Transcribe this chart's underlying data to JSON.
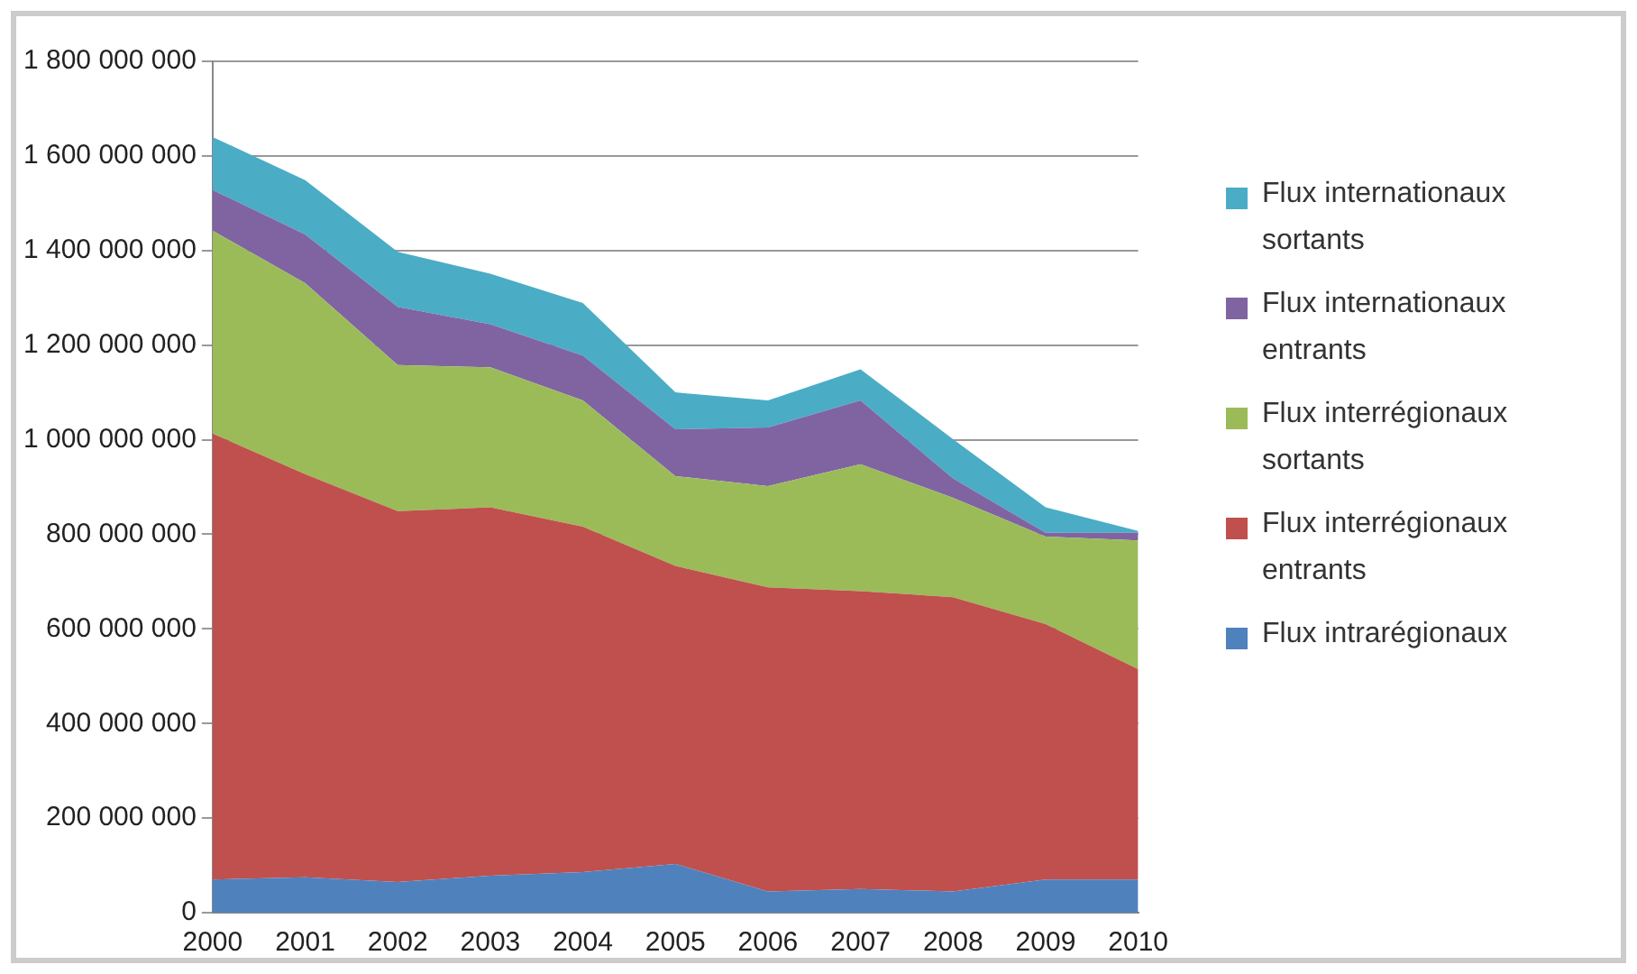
{
  "chart_data": {
    "type": "area",
    "stacked": true,
    "categories": [
      "2000",
      "2001",
      "2002",
      "2003",
      "2004",
      "2005",
      "2006",
      "2007",
      "2008",
      "2009",
      "2010"
    ],
    "ylim": [
      0,
      1800000000
    ],
    "yticks": [
      0,
      200000000,
      400000000,
      600000000,
      800000000,
      1000000000,
      1200000000,
      1400000000,
      1600000000,
      1800000000
    ],
    "grid": "y",
    "legend": "right",
    "series": [
      {
        "name": "Flux intrarégionaux",
        "color": "#4f81bd",
        "values": [
          70000000,
          75000000,
          65000000,
          78000000,
          86000000,
          103000000,
          45000000,
          50000000,
          45000000,
          70000000,
          70000000
        ]
      },
      {
        "name": "Flux interrégionaux entrants",
        "color": "#c0504d",
        "values": [
          943000000,
          852000000,
          784000000,
          779000000,
          730000000,
          630000000,
          643000000,
          630000000,
          622000000,
          540000000,
          445000000
        ]
      },
      {
        "name": "Flux interrégionaux sortants",
        "color": "#9bbb59",
        "values": [
          429000000,
          404000000,
          309000000,
          296000000,
          267000000,
          190000000,
          214000000,
          268000000,
          210000000,
          185000000,
          272000000
        ]
      },
      {
        "name": "Flux internationaux entrants",
        "color": "#8064a2",
        "values": [
          86000000,
          103000000,
          123000000,
          91000000,
          95000000,
          99000000,
          124000000,
          135000000,
          41000000,
          8000000,
          16000000
        ]
      },
      {
        "name": "Flux internationaux sortants",
        "color": "#4bacc6",
        "values": [
          112000000,
          115000000,
          116000000,
          107000000,
          111000000,
          78000000,
          57000000,
          66000000,
          83000000,
          54000000,
          4000000
        ]
      }
    ]
  }
}
